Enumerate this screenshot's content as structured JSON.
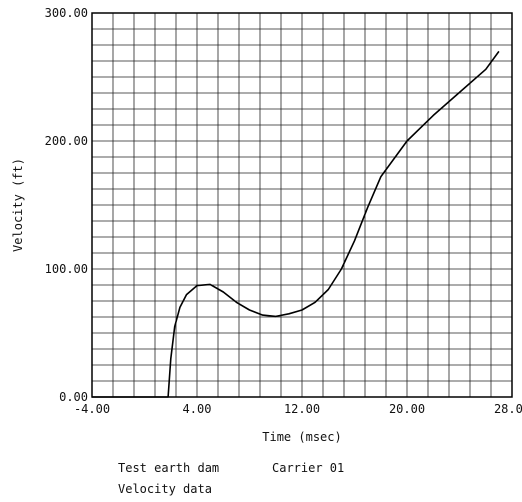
{
  "chart_data": {
    "type": "line",
    "xlabel": "Time (msec)",
    "ylabel": "Velocity (ft)",
    "xlim": [
      -4,
      28
    ],
    "ylim": [
      0,
      300
    ],
    "x_ticks": [
      "-4.00",
      "4.00",
      "12.00",
      "20.00",
      "28.00"
    ],
    "y_ticks": [
      "0.00",
      "100.00",
      "200.00",
      "300.00"
    ],
    "grid": true,
    "series": [
      {
        "x": [
          -4,
          1.8,
          2.0,
          2.3,
          2.7,
          3.2,
          4.0,
          5.0,
          6.0,
          7.0,
          8.0,
          9.0,
          10.0,
          11.0,
          12.0,
          13.0,
          14.0,
          15.0,
          16.0,
          17.0,
          18.0,
          20.0,
          22.0,
          24.0,
          26.0,
          27.0
        ],
        "y": [
          0,
          0,
          30,
          55,
          70,
          80,
          87,
          88,
          82,
          74,
          68,
          64,
          63,
          65,
          68,
          74,
          84,
          100,
          122,
          148,
          172,
          200,
          220,
          238,
          256,
          270
        ]
      }
    ]
  },
  "captions": {
    "line1_left": "Test earth dam",
    "line1_right": "Carrier 01",
    "line2": "Velocity data"
  }
}
